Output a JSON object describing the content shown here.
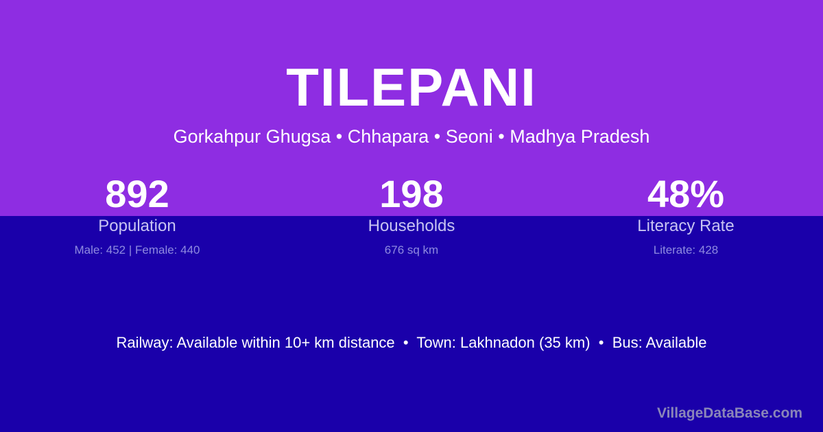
{
  "colors": {
    "top_background": "#8e2de2",
    "bottom_background": "#1a00aa"
  },
  "village": {
    "name": "TILEPANI",
    "breadcrumb": "Gorkahpur Ghugsa • Chhapara • Seoni • Madhya Pradesh"
  },
  "stats": [
    {
      "value": "892",
      "label": "Population",
      "detail": "Male: 452 | Female: 440"
    },
    {
      "value": "198",
      "label": "Households",
      "detail": "676 sq km"
    },
    {
      "value": "48%",
      "label": "Literacy Rate",
      "detail": "Literate: 428"
    }
  ],
  "connectivity": "Railway: Available within 10+ km distance  •  Town: Lakhnadon (35 km)  •  Bus: Available",
  "watermark": "VillageDataBase.com"
}
